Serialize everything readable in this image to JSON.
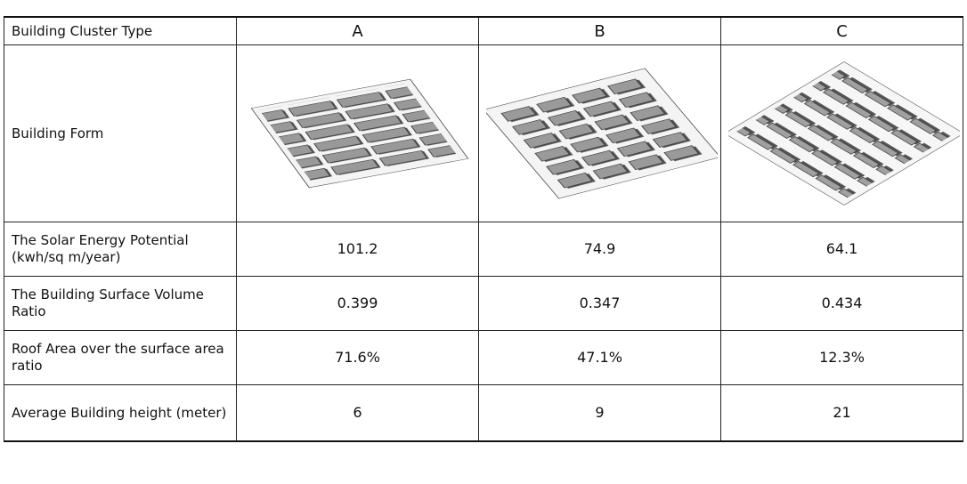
{
  "table": {
    "header": [
      "Building Cluster Type",
      "A",
      "B",
      "C"
    ],
    "form_row_label": "Building Form",
    "rows": [
      [
        "The Solar Energy Potential (kwh/sq m/year)",
        "101.2",
        "74.9",
        "64.1"
      ],
      [
        "The Building Surface Volume Ratio",
        "0.399",
        "0.347",
        "0.434"
      ],
      [
        "Roof Area over the surface area ratio",
        "71.6%",
        "47.1%",
        "12.3%"
      ],
      [
        "Average Building height (meter)",
        "6",
        "9",
        "21"
      ]
    ]
  }
}
